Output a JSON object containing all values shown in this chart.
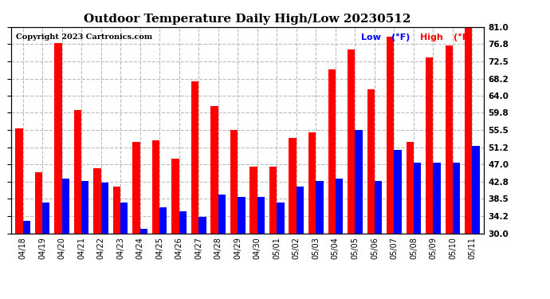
{
  "title": "Outdoor Temperature Daily High/Low 20230512",
  "copyright": "Copyright 2023 Cartronics.com",
  "categories": [
    "04/18",
    "04/19",
    "04/20",
    "04/21",
    "04/22",
    "04/23",
    "04/24",
    "04/25",
    "04/26",
    "04/27",
    "04/28",
    "04/29",
    "04/30",
    "05/01",
    "05/02",
    "05/03",
    "05/04",
    "05/05",
    "05/06",
    "05/07",
    "05/08",
    "05/09",
    "05/10",
    "05/11"
  ],
  "high": [
    56.0,
    45.0,
    77.0,
    60.5,
    46.0,
    41.5,
    52.5,
    53.0,
    48.5,
    67.5,
    61.5,
    55.5,
    46.5,
    46.5,
    53.5,
    55.0,
    70.5,
    75.5,
    65.5,
    78.5,
    52.5,
    73.5,
    76.5,
    81.0
  ],
  "low": [
    33.0,
    37.5,
    43.5,
    43.0,
    42.5,
    37.5,
    31.0,
    36.5,
    35.5,
    34.0,
    39.5,
    39.0,
    39.0,
    37.5,
    41.5,
    43.0,
    43.5,
    55.5,
    43.0,
    50.5,
    47.5,
    47.5,
    47.5,
    51.5
  ],
  "ylim": [
    30.0,
    81.0
  ],
  "yticks": [
    30.0,
    34.2,
    38.5,
    42.8,
    47.0,
    51.2,
    55.5,
    59.8,
    64.0,
    68.2,
    72.5,
    76.8,
    81.0
  ],
  "high_color": "#ff0000",
  "low_color": "#0000ff",
  "background_color": "#ffffff",
  "grid_color": "#bbbbbb",
  "title_fontsize": 11,
  "copyright_fontsize": 7,
  "bar_width": 0.38,
  "ybase": 30.0
}
